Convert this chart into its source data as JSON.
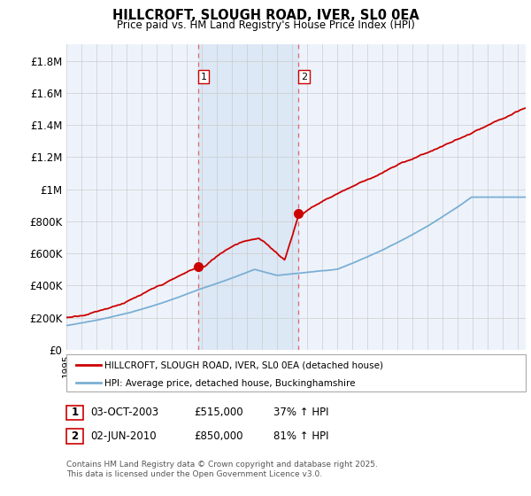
{
  "title": "HILLCROFT, SLOUGH ROAD, IVER, SL0 0EA",
  "subtitle": "Price paid vs. HM Land Registry's House Price Index (HPI)",
  "ylabel_ticks": [
    "£0",
    "£200K",
    "£400K",
    "£600K",
    "£800K",
    "£1M",
    "£1.2M",
    "£1.4M",
    "£1.6M",
    "£1.8M"
  ],
  "ytick_values": [
    0,
    200000,
    400000,
    600000,
    800000,
    1000000,
    1200000,
    1400000,
    1600000,
    1800000
  ],
  "ylim": [
    0,
    1900000
  ],
  "hpi_color": "#7bafd4",
  "price_color": "#cc0000",
  "sale1_x": 2003.75,
  "sale1_y": 515000,
  "sale2_x": 2010.42,
  "sale2_y": 850000,
  "vline_color": "#dd6666",
  "span_color": "#dce8f5",
  "legend_label1": "HILLCROFT, SLOUGH ROAD, IVER, SL0 0EA (detached house)",
  "legend_label2": "HPI: Average price, detached house, Buckinghamshire",
  "table_row1": [
    "1",
    "03-OCT-2003",
    "£515,000",
    "37% ↑ HPI"
  ],
  "table_row2": [
    "2",
    "02-JUN-2010",
    "£850,000",
    "81% ↑ HPI"
  ],
  "footnote": "Contains HM Land Registry data © Crown copyright and database right 2025.\nThis data is licensed under the Open Government Licence v3.0.",
  "background_color": "#ffffff",
  "plot_bg_color": "#eef3fb",
  "grid_color": "#cccccc",
  "xlim_start": 1995,
  "xlim_end": 2025.5
}
